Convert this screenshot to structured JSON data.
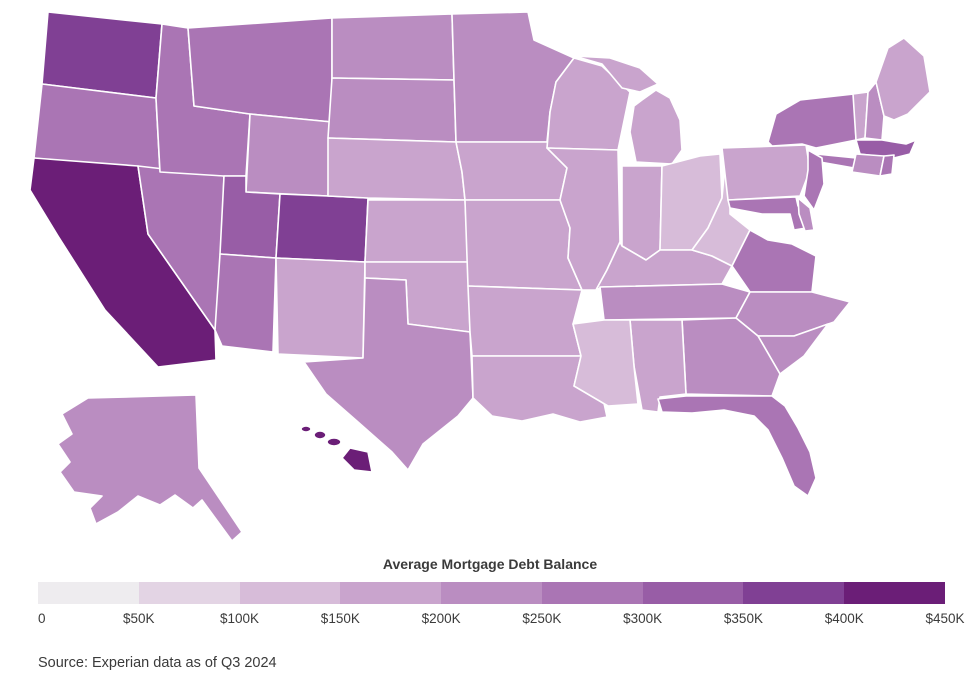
{
  "legend": {
    "title": "Average Mortgage Debt Balance",
    "tick_labels": [
      "0",
      "$50K",
      "$100K",
      "$150K",
      "$200K",
      "$250K",
      "$300K",
      "$350K",
      "$400K",
      "$450K"
    ],
    "segment_colors": [
      "#eeecef",
      "#e3d4e4",
      "#d7bcd9",
      "#c9a4cd",
      "#ba8dc1",
      "#aa75b4",
      "#985da6",
      "#804094",
      "#6b1e77"
    ]
  },
  "source": {
    "text": "Source: Experian data as of Q3 2024"
  },
  "chart_data": {
    "type": "heatmap",
    "subtype": "us_state_choropleth",
    "title": "Average Mortgage Debt Balance",
    "legend_position": "bottom",
    "scale": {
      "min": 0,
      "max": 450000,
      "step": 50000,
      "unit": "USD"
    },
    "states": [
      {
        "abbr": "AL",
        "name": "Alabama",
        "value": 166000
      },
      {
        "abbr": "AK",
        "name": "Alaska",
        "value": 247000
      },
      {
        "abbr": "AZ",
        "name": "Arizona",
        "value": 287000
      },
      {
        "abbr": "AR",
        "name": "Arkansas",
        "value": 152000
      },
      {
        "abbr": "CA",
        "name": "California",
        "value": 437000
      },
      {
        "abbr": "CO",
        "name": "Colorado",
        "value": 356000
      },
      {
        "abbr": "CT",
        "name": "Connecticut",
        "value": 244000
      },
      {
        "abbr": "DE",
        "name": "Delaware",
        "value": 219000
      },
      {
        "abbr": "FL",
        "name": "Florida",
        "value": 254000
      },
      {
        "abbr": "GA",
        "name": "Georgia",
        "value": 235000
      },
      {
        "abbr": "HI",
        "name": "Hawaii",
        "value": 410000
      },
      {
        "abbr": "ID",
        "name": "Idaho",
        "value": 282000
      },
      {
        "abbr": "IL",
        "name": "Illinois",
        "value": 191000
      },
      {
        "abbr": "IN",
        "name": "Indiana",
        "value": 156000
      },
      {
        "abbr": "IA",
        "name": "Iowa",
        "value": 159000
      },
      {
        "abbr": "KS",
        "name": "Kansas",
        "value": 176000
      },
      {
        "abbr": "KY",
        "name": "Kentucky",
        "value": 153000
      },
      {
        "abbr": "LA",
        "name": "Louisiana",
        "value": 175000
      },
      {
        "abbr": "ME",
        "name": "Maine",
        "value": 190000
      },
      {
        "abbr": "MD",
        "name": "Maryland",
        "value": 290000
      },
      {
        "abbr": "MA",
        "name": "Massachusetts",
        "value": 339000
      },
      {
        "abbr": "MI",
        "name": "Michigan",
        "value": 158000
      },
      {
        "abbr": "MN",
        "name": "Minnesota",
        "value": 226000
      },
      {
        "abbr": "MS",
        "name": "Mississippi",
        "value": 144000
      },
      {
        "abbr": "MO",
        "name": "Missouri",
        "value": 172000
      },
      {
        "abbr": "MT",
        "name": "Montana",
        "value": 256000
      },
      {
        "abbr": "NE",
        "name": "Nebraska",
        "value": 183000
      },
      {
        "abbr": "NV",
        "name": "Nevada",
        "value": 288000
      },
      {
        "abbr": "NH",
        "name": "New Hampshire",
        "value": 245000
      },
      {
        "abbr": "NJ",
        "name": "New Jersey",
        "value": 283000
      },
      {
        "abbr": "NM",
        "name": "New Mexico",
        "value": 197000
      },
      {
        "abbr": "NY",
        "name": "New York",
        "value": 280000
      },
      {
        "abbr": "NC",
        "name": "North Carolina",
        "value": 229000
      },
      {
        "abbr": "ND",
        "name": "North Dakota",
        "value": 210000
      },
      {
        "abbr": "OH",
        "name": "Ohio",
        "value": 148000
      },
      {
        "abbr": "OK",
        "name": "Oklahoma",
        "value": 163000
      },
      {
        "abbr": "OR",
        "name": "Oregon",
        "value": 291000
      },
      {
        "abbr": "PA",
        "name": "Pennsylvania",
        "value": 183000
      },
      {
        "abbr": "RI",
        "name": "Rhode Island",
        "value": 270000
      },
      {
        "abbr": "SC",
        "name": "South Carolina",
        "value": 211000
      },
      {
        "abbr": "SD",
        "name": "South Dakota",
        "value": 203000
      },
      {
        "abbr": "TN",
        "name": "Tennessee",
        "value": 216000
      },
      {
        "abbr": "TX",
        "name": "Texas",
        "value": 229000
      },
      {
        "abbr": "UT",
        "name": "Utah",
        "value": 330000
      },
      {
        "abbr": "VT",
        "name": "Vermont",
        "value": 192000
      },
      {
        "abbr": "VA",
        "name": "Virginia",
        "value": 290000
      },
      {
        "abbr": "WA",
        "name": "Washington",
        "value": 370000
      },
      {
        "abbr": "WV",
        "name": "West Virginia",
        "value": 128000
      },
      {
        "abbr": "WI",
        "name": "Wisconsin",
        "value": 178000
      },
      {
        "abbr": "WY",
        "name": "Wyoming",
        "value": 205000
      }
    ]
  }
}
